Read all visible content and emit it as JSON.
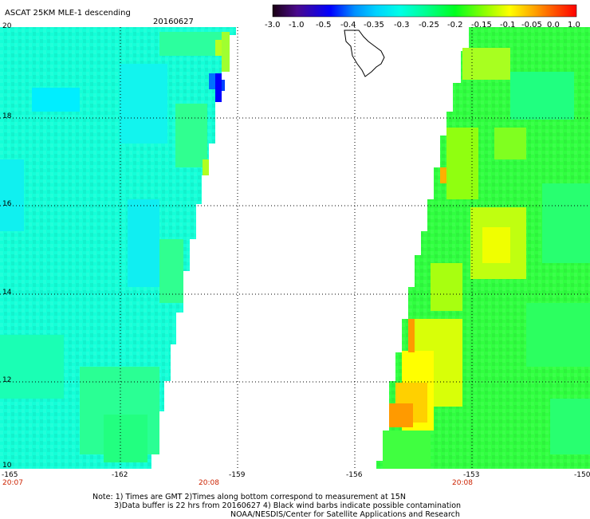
{
  "title": "ASCAT 25KM MLE-1 descending",
  "date": "20160627",
  "colorbar": {
    "labels": [
      "-3.0",
      "-1.0",
      "-0.5",
      "-0.4",
      "-0.35",
      "-0.3",
      "-0.25",
      "-0.2",
      "-0.15",
      "-0.1",
      "-0.05",
      "0.0",
      "1.0"
    ]
  },
  "axes": {
    "lon_labels": [
      "-165",
      "-162",
      "-159",
      "-156",
      "-153",
      "-150"
    ],
    "lat_labels": [
      "20",
      "18",
      "16",
      "14",
      "12",
      "10"
    ],
    "time_labels": [
      "20:07",
      "20:08",
      "20:08"
    ]
  },
  "notes": {
    "line1": "Note: 1) Times are GMT 2)Times along bottom correspond to measurement at 15N",
    "line2": "3)Data buffer is 22 hrs from 20160627 4) Black wind barbs indicate possible contamination",
    "line3": "NOAA/NESDIS/Center for Satellite Applications and Research"
  },
  "colors": {
    "colorbar": [
      "#1a0012",
      "#4a0a8c",
      "#0000ff",
      "#0090ff",
      "#00d2ff",
      "#00ffe6",
      "#00ff96",
      "#00ff20",
      "#90ff00",
      "#ffff00",
      "#ffa500",
      "#ff5000",
      "#ff0000"
    ]
  }
}
